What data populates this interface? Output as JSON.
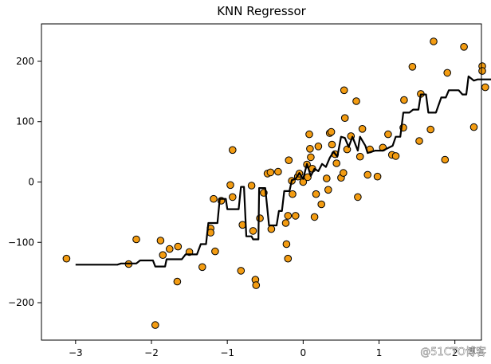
{
  "chart_data": {
    "type": "scatter",
    "title": "KNN Regressor",
    "xlabel": "",
    "ylabel": "",
    "xlim": [
      -3.45,
      2.35
    ],
    "ylim": [
      -262,
      262
    ],
    "x_ticks": [
      -3,
      -2,
      -1,
      0,
      1,
      2
    ],
    "y_ticks": [
      -200,
      -100,
      0,
      100,
      200
    ],
    "grid": false,
    "colors": {
      "points_fill": "#f39c12",
      "points_edge": "#000000",
      "line": "#000000"
    },
    "series": [
      {
        "kind": "scatter",
        "points": [
          [
            -3.12,
            -127
          ],
          [
            -2.3,
            -136
          ],
          [
            -2.2,
            -95
          ],
          [
            -1.95,
            -237
          ],
          [
            -1.88,
            -97
          ],
          [
            -1.85,
            -121
          ],
          [
            -1.76,
            -111
          ],
          [
            -1.66,
            -165
          ],
          [
            -1.65,
            -107
          ],
          [
            -1.5,
            -116
          ],
          [
            -1.33,
            -141
          ],
          [
            -1.22,
            -77
          ],
          [
            -1.22,
            -84
          ],
          [
            -1.18,
            -28
          ],
          [
            -1.16,
            -115
          ],
          [
            -1.08,
            -31
          ],
          [
            -0.96,
            -5
          ],
          [
            -0.93,
            53
          ],
          [
            -0.93,
            -25
          ],
          [
            -0.82,
            -147
          ],
          [
            -0.8,
            -71
          ],
          [
            -0.68,
            -6
          ],
          [
            -0.66,
            -81
          ],
          [
            -0.63,
            -162
          ],
          [
            -0.62,
            -171
          ],
          [
            -0.57,
            -60
          ],
          [
            -0.52,
            -18
          ],
          [
            -0.47,
            14
          ],
          [
            -0.43,
            16
          ],
          [
            -0.42,
            -78
          ],
          [
            -0.33,
            17
          ],
          [
            -0.23,
            -68
          ],
          [
            -0.22,
            -103
          ],
          [
            -0.2,
            -56
          ],
          [
            -0.2,
            -127
          ],
          [
            -0.19,
            36
          ],
          [
            -0.15,
            2
          ],
          [
            -0.14,
            -20
          ],
          [
            -0.1,
            -56
          ],
          [
            -0.07,
            9
          ],
          [
            -0.05,
            14
          ],
          [
            0,
            0
          ],
          [
            0.05,
            29
          ],
          [
            0.06,
            8
          ],
          [
            0.08,
            79
          ],
          [
            0.09,
            55
          ],
          [
            0.1,
            41
          ],
          [
            0.12,
            22
          ],
          [
            0.15,
            -58
          ],
          [
            0.17,
            -20
          ],
          [
            0.2,
            59
          ],
          [
            0.24,
            -37
          ],
          [
            0.31,
            6
          ],
          [
            0.33,
            -13
          ],
          [
            0.35,
            81
          ],
          [
            0.37,
            83
          ],
          [
            0.38,
            62
          ],
          [
            0.42,
            46
          ],
          [
            0.44,
            31
          ],
          [
            0.5,
            7
          ],
          [
            0.53,
            15
          ],
          [
            0.54,
            152
          ],
          [
            0.55,
            106
          ],
          [
            0.58,
            54
          ],
          [
            0.63,
            76
          ],
          [
            0.7,
            134
          ],
          [
            0.72,
            -25
          ],
          [
            0.75,
            42
          ],
          [
            0.78,
            88
          ],
          [
            0.85,
            12
          ],
          [
            0.88,
            54
          ],
          [
            0.98,
            9
          ],
          [
            1.05,
            57
          ],
          [
            1.12,
            79
          ],
          [
            1.17,
            45
          ],
          [
            1.22,
            43
          ],
          [
            1.32,
            90
          ],
          [
            1.33,
            136
          ],
          [
            1.44,
            191
          ],
          [
            1.53,
            68
          ],
          [
            1.55,
            146
          ],
          [
            1.68,
            87
          ],
          [
            1.72,
            233
          ],
          [
            1.87,
            37
          ],
          [
            1.9,
            181
          ],
          [
            2.12,
            224
          ],
          [
            2.25,
            91
          ],
          [
            2.36,
            192
          ],
          [
            2.36,
            184
          ],
          [
            2.4,
            157
          ]
        ]
      },
      {
        "kind": "line",
        "points": [
          [
            -3.0,
            -137
          ],
          [
            -2.45,
            -137
          ],
          [
            -2.4,
            -135
          ],
          [
            -2.2,
            -135
          ],
          [
            -2.15,
            -130
          ],
          [
            -1.98,
            -130
          ],
          [
            -1.95,
            -140
          ],
          [
            -1.82,
            -140
          ],
          [
            -1.8,
            -128
          ],
          [
            -1.6,
            -128
          ],
          [
            -1.55,
            -120
          ],
          [
            -1.4,
            -120
          ],
          [
            -1.35,
            -103
          ],
          [
            -1.28,
            -103
          ],
          [
            -1.25,
            -68
          ],
          [
            -1.13,
            -68
          ],
          [
            -1.1,
            -28
          ],
          [
            -1.02,
            -28
          ],
          [
            -1.0,
            -45
          ],
          [
            -0.85,
            -45
          ],
          [
            -0.82,
            -8
          ],
          [
            -0.78,
            -8
          ],
          [
            -0.75,
            -90
          ],
          [
            -0.68,
            -90
          ],
          [
            -0.66,
            -95
          ],
          [
            -0.59,
            -95
          ],
          [
            -0.58,
            -10
          ],
          [
            -0.5,
            -10
          ],
          [
            -0.45,
            -72
          ],
          [
            -0.35,
            -72
          ],
          [
            -0.32,
            -48
          ],
          [
            -0.28,
            -48
          ],
          [
            -0.25,
            -15
          ],
          [
            -0.18,
            -15
          ],
          [
            -0.15,
            3
          ],
          [
            -0.1,
            5
          ],
          [
            -0.05,
            15
          ],
          [
            0.0,
            5
          ],
          [
            0.05,
            30
          ],
          [
            0.1,
            10
          ],
          [
            0.15,
            22
          ],
          [
            0.2,
            18
          ],
          [
            0.25,
            30
          ],
          [
            0.3,
            25
          ],
          [
            0.35,
            40
          ],
          [
            0.4,
            50
          ],
          [
            0.45,
            42
          ],
          [
            0.5,
            75
          ],
          [
            0.55,
            73
          ],
          [
            0.6,
            58
          ],
          [
            0.65,
            75
          ],
          [
            0.72,
            52
          ],
          [
            0.75,
            75
          ],
          [
            0.82,
            60
          ],
          [
            0.85,
            48
          ],
          [
            0.95,
            52
          ],
          [
            1.05,
            52
          ],
          [
            1.1,
            55
          ],
          [
            1.18,
            60
          ],
          [
            1.22,
            75
          ],
          [
            1.28,
            75
          ],
          [
            1.32,
            115
          ],
          [
            1.4,
            115
          ],
          [
            1.45,
            120
          ],
          [
            1.52,
            120
          ],
          [
            1.55,
            145
          ],
          [
            1.62,
            145
          ],
          [
            1.65,
            115
          ],
          [
            1.75,
            115
          ],
          [
            1.82,
            140
          ],
          [
            1.88,
            140
          ],
          [
            1.92,
            152
          ],
          [
            2.05,
            152
          ],
          [
            2.1,
            145
          ],
          [
            2.15,
            145
          ],
          [
            2.18,
            175
          ],
          [
            2.25,
            168
          ],
          [
            2.3,
            170
          ],
          [
            3.0,
            170
          ]
        ]
      }
    ],
    "watermark": "@51CTO博客"
  }
}
